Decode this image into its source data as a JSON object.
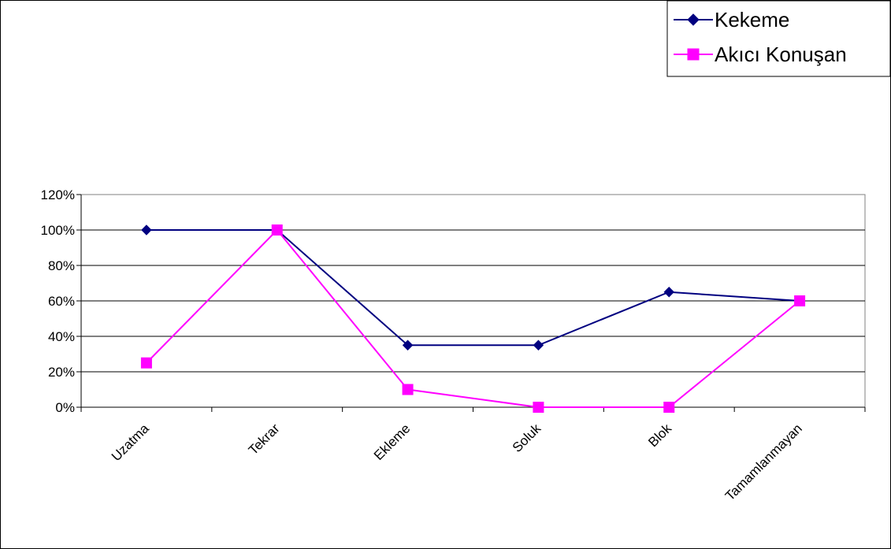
{
  "chart_data": {
    "type": "line",
    "title": "",
    "xlabel": "",
    "ylabel": "",
    "categories": [
      "Uzatma",
      "Tekrar",
      "Ekleme",
      "Soluk",
      "Blok",
      "Tamamlanmayan"
    ],
    "ylim": [
      0,
      120
    ],
    "yticks": [
      "0%",
      "20%",
      "40%",
      "60%",
      "80%",
      "100%",
      "120%"
    ],
    "grid": true,
    "legend_position": "top-right",
    "series": [
      {
        "name": "Kekeme",
        "values": [
          100,
          100,
          35,
          35,
          65,
          60
        ],
        "color": "#000080",
        "marker": "diamond"
      },
      {
        "name": "Akıcı Konuşan",
        "values": [
          25,
          100,
          10,
          0,
          0,
          60
        ],
        "color": "#FF00FF",
        "marker": "square"
      }
    ]
  }
}
